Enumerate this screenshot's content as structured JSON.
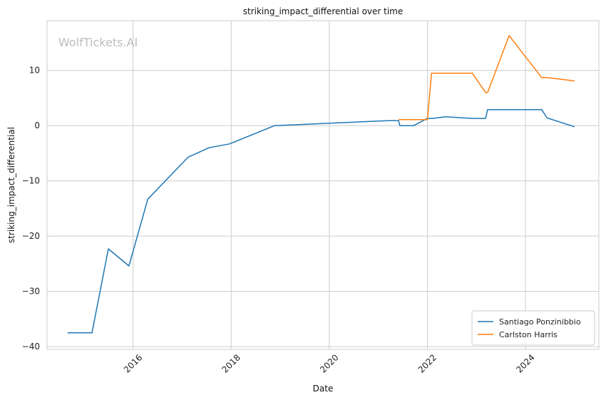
{
  "chart_data": {
    "type": "line",
    "title": "striking_impact_differential over time",
    "xlabel": "Date",
    "ylabel": "striking_impact_differential",
    "watermark": "WolfTickets.AI",
    "xlim": [
      "2014-04-01",
      "2025-07-01"
    ],
    "ylim": [
      -40.5,
      19
    ],
    "x_ticks": [
      "2016",
      "2018",
      "2020",
      "2022",
      "2024"
    ],
    "y_ticks": [
      10,
      0,
      -10,
      -20,
      -30,
      -40
    ],
    "y_tick_labels": [
      "10",
      "0",
      "−10",
      "−20",
      "−30",
      "−40"
    ],
    "grid": true,
    "legend_position": "lower-right",
    "series": [
      {
        "name": "Santiago Ponzinibbio",
        "color": "#1f77b4",
        "x": [
          "2014-09-01",
          "2015-03-01",
          "2015-07-01",
          "2015-12-01",
          "2016-04-20",
          "2016-08-01",
          "2017-02-15",
          "2017-07-20",
          "2017-12-20",
          "2018-11-20",
          "2021-03-15",
          "2021-06-01",
          "2021-06-10",
          "2021-09-20",
          "2022-01-01",
          "2022-02-05",
          "2022-05-20",
          "2022-12-01",
          "2023-03-10",
          "2023-03-25",
          "2023-09-01",
          "2024-05-01",
          "2024-06-10",
          "2025-01-01"
        ],
        "y": [
          -37.5,
          -37.5,
          -22.3,
          -25.4,
          -13.3,
          -10.7,
          -5.7,
          -4.0,
          -3.3,
          0.0,
          0.9,
          0.9,
          0.0,
          0.0,
          1.3,
          1.3,
          1.6,
          1.3,
          1.3,
          2.9,
          2.9,
          2.9,
          1.4,
          -0.2
        ]
      },
      {
        "name": "Carlston Harris",
        "color": "#ff7f0e",
        "x": [
          "2021-06-01",
          "2021-12-01",
          "2022-01-01",
          "2022-02-01",
          "2022-12-01",
          "2023-03-10",
          "2023-03-25",
          "2023-09-01",
          "2024-05-01",
          "2024-06-10",
          "2025-01-01"
        ],
        "y": [
          1.1,
          1.1,
          1.1,
          9.5,
          9.5,
          6.0,
          6.0,
          16.3,
          8.7,
          8.7,
          8.1
        ]
      }
    ]
  }
}
